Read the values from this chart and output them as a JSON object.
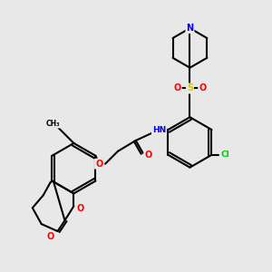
{
  "bg_color": "#e8e8e8",
  "bond_color": "#000000",
  "atom_colors": {
    "N": "#0000ff",
    "O": "#ff0000",
    "S": "#cccc00",
    "Cl": "#00cc00",
    "C": "#000000",
    "H": "#404040"
  },
  "title": "",
  "figsize": [
    3.0,
    3.0
  ],
  "dpi": 100
}
